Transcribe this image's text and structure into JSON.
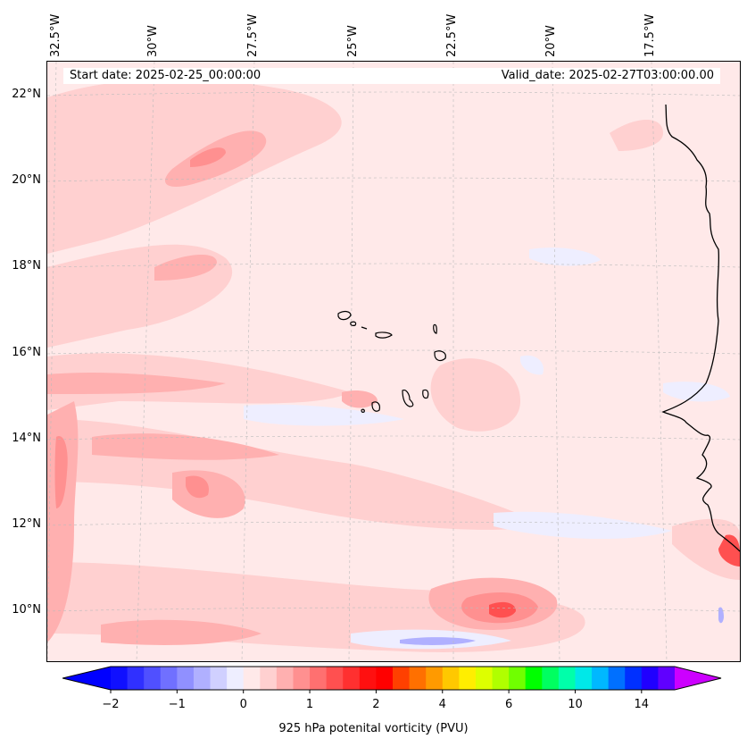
{
  "header": {
    "start_date": "Start date: 2025-02-25_00:00:00",
    "valid_date": "Valid_date: 2025-02-27T03:00:00.00"
  },
  "longitude_labels": [
    "32.5°W",
    "30°W",
    "27.5°W",
    "25°W",
    "22.5°W",
    "20°W",
    "17.5°W"
  ],
  "latitude_labels": [
    "22°N",
    "20°N",
    "18°N",
    "16°N",
    "14°N",
    "12°N",
    "10°N"
  ],
  "colorbar": {
    "label": "925 hPa potenital vorticity (PVU)",
    "ticks": [
      "−2",
      "−1",
      "0",
      "1",
      "2",
      "4",
      "6",
      "10",
      "14"
    ],
    "colors": [
      "#1010ff",
      "#3030ff",
      "#5050ff",
      "#7070ff",
      "#9090ff",
      "#b0b0ff",
      "#d0d0ff",
      "#eeeeff",
      "#ffe9e9",
      "#ffd0d0",
      "#ffb0b0",
      "#ff9090",
      "#ff7070",
      "#ff5050",
      "#ff3030",
      "#ff1010",
      "#ff0000",
      "#ff4000",
      "#ff7000",
      "#ff9a00",
      "#ffc800",
      "#ffee00",
      "#ddff00",
      "#b0ff00",
      "#70ff00",
      "#00ff00",
      "#00ff60",
      "#00ffaa",
      "#00e8e8",
      "#00b8ff",
      "#0070ff",
      "#0030ff",
      "#2000ff",
      "#6000ff"
    ],
    "under_color": "#0000ff",
    "over_color": "#cc00ff"
  }
}
